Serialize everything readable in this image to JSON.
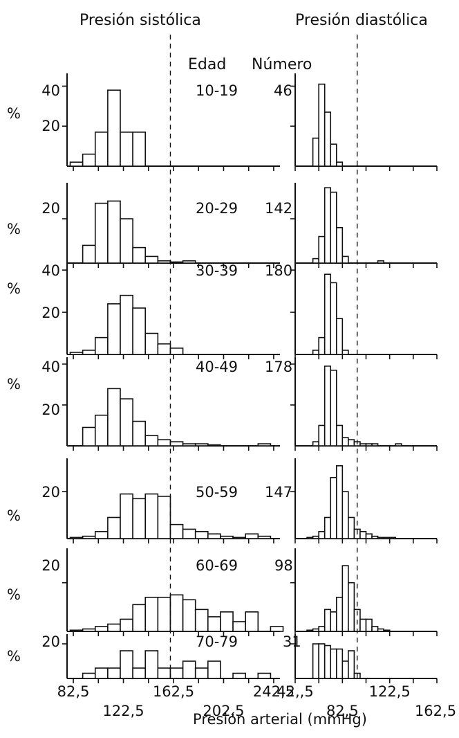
{
  "header": {
    "systolic_title": "Presión sistólica",
    "diastolic_title": "Presión diastólica",
    "age_label": "Edad",
    "count_label": "Número"
  },
  "footer": {
    "xlabel": "Presión arterial (mmHg)"
  },
  "chart_data": {
    "type": "bar",
    "percent_label": "%",
    "systolic": {
      "bin_width": 10,
      "ticks_top": [
        "82,5",
        "162,5",
        "242,5"
      ],
      "ticks_bottom": [
        "122,5",
        "202,5"
      ],
      "reference_line": 160,
      "xlim": [
        77.5,
        247.5
      ]
    },
    "diastolic": {
      "bin_width": 5,
      "ticks_top": [
        "42,,5",
        "122,5"
      ],
      "ticks_bottom": [
        "82,5",
        "162,5"
      ],
      "reference_line": 95,
      "xlim": [
        42.5,
        162.5
      ]
    },
    "panels": [
      {
        "age": "10-19",
        "count": "46",
        "ylim": [
          0,
          45
        ],
        "yticks": [
          "40",
          "20"
        ],
        "systolic": {
          "start": 85,
          "values": [
            2,
            6,
            17,
            38,
            17,
            17
          ]
        },
        "diastolic": {
          "start": 60,
          "values": [
            14,
            41,
            27,
            11,
            2
          ]
        }
      },
      {
        "age": "20-29",
        "count": "142",
        "ylim": [
          0,
          35
        ],
        "yticks": [
          "20"
        ],
        "systolic": {
          "start": 95,
          "values": [
            8,
            27,
            28,
            20,
            7,
            3,
            1,
            0.5,
            1
          ]
        },
        "diastolic": {
          "start": 60,
          "values": [
            2,
            12,
            34,
            32,
            16,
            3,
            0,
            0,
            0,
            0,
            0,
            1
          ]
        }
      },
      {
        "age": "30-39",
        "count": "180",
        "ylim": [
          0,
          42
        ],
        "yticks": [
          "40",
          "20"
        ],
        "systolic": {
          "start": 85,
          "values": [
            1,
            2,
            8,
            24,
            28,
            22,
            10,
            5,
            3
          ]
        },
        "diastolic": {
          "start": 60,
          "values": [
            2,
            8,
            38,
            34,
            17,
            2
          ]
        }
      },
      {
        "age": "40-49",
        "count": "178",
        "ylim": [
          0,
          42
        ],
        "yticks": [
          "40",
          "20"
        ],
        "systolic": {
          "start": 95,
          "values": [
            9,
            15,
            28,
            23,
            12,
            5,
            3,
            2,
            1,
            1,
            0.5,
            0,
            0,
            0,
            1
          ]
        },
        "diastolic": {
          "start": 60,
          "values": [
            2,
            10,
            39,
            37,
            10,
            4,
            3,
            2,
            1,
            1,
            1,
            0,
            0,
            0,
            1
          ]
        }
      },
      {
        "age": "50-59",
        "count": "147",
        "ylim": [
          0,
          33
        ],
        "yticks": [
          "20"
        ],
        "systolic": {
          "start": 85,
          "values": [
            0.5,
            1,
            3,
            9,
            19,
            17,
            19,
            18,
            6,
            4,
            3,
            2,
            1,
            0.5,
            2,
            1
          ]
        },
        "diastolic": {
          "start": 55,
          "values": [
            0.5,
            1,
            3,
            9,
            26,
            31,
            20,
            9,
            4,
            3,
            2,
            1,
            0.5,
            0.5,
            0.5
          ]
        }
      },
      {
        "age": "60-69",
        "count": "98",
        "ylim": [
          0,
          33
        ],
        "yticks": [
          "20"
        ],
        "systolic": {
          "start": 85,
          "values": [
            0.5,
            1,
            2,
            3,
            5,
            11,
            14,
            14,
            15,
            13,
            9,
            6,
            8,
            4,
            8,
            0,
            2
          ]
        },
        "diastolic": {
          "start": 55,
          "values": [
            0.5,
            1,
            2,
            9,
            8,
            14,
            27,
            20,
            9,
            5,
            5,
            2,
            1,
            0.5
          ]
        }
      },
      {
        "age": "70-79",
        "count": "31",
        "ylim": [
          0,
          24
        ],
        "yticks": [
          "20"
        ],
        "systolic": {
          "start": 95,
          "values": [
            3,
            6,
            6,
            16,
            6,
            16,
            6,
            6,
            10,
            6,
            10,
            0,
            3,
            0,
            3
          ]
        },
        "diastolic": {
          "start": 60,
          "values": [
            20,
            20,
            19,
            17,
            17,
            10,
            16,
            3
          ]
        }
      }
    ]
  }
}
